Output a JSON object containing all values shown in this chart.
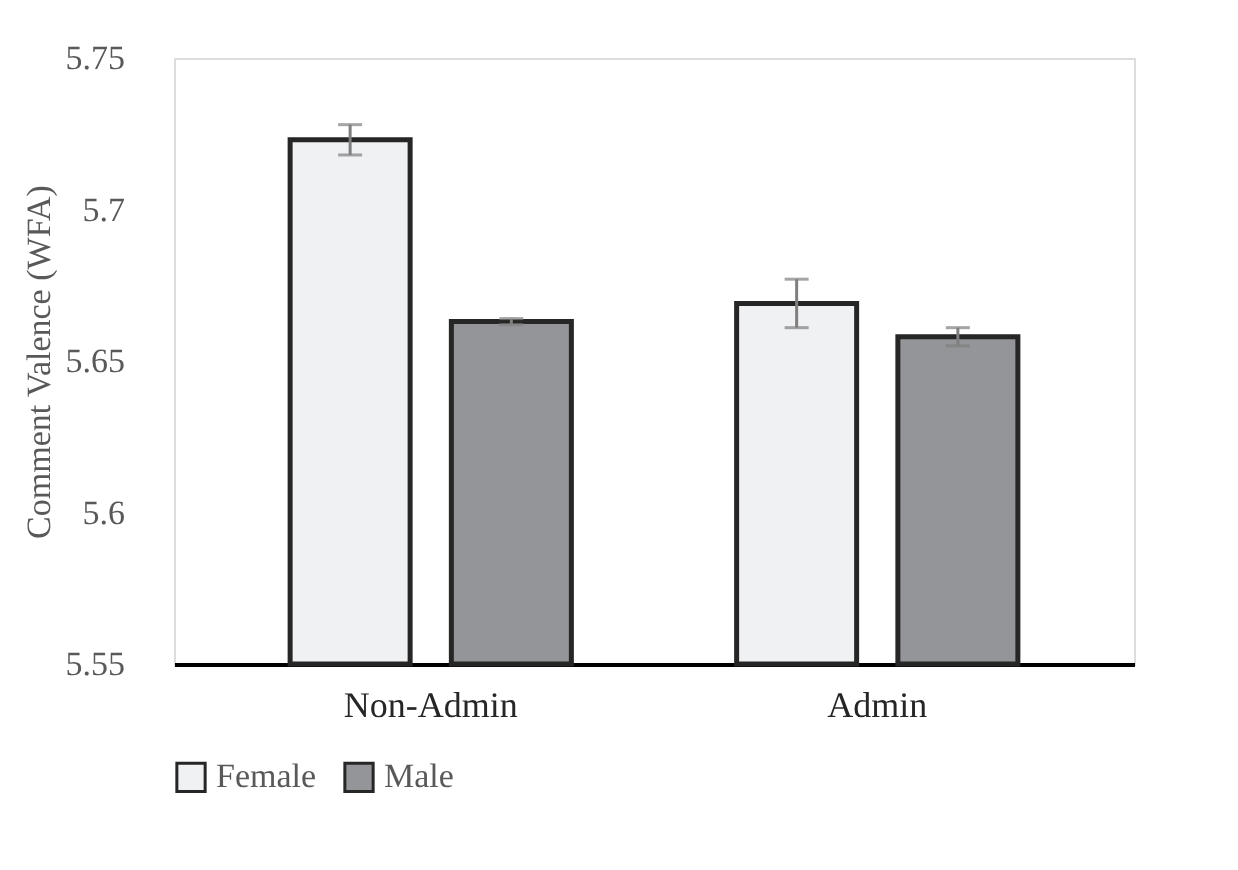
{
  "chart_data": {
    "type": "bar",
    "ylabel": "Comment Valence (WFA)",
    "categories": [
      "Non-Admin",
      "Admin"
    ],
    "series": [
      {
        "name": "Female",
        "color": "#f0f1f3",
        "values": [
          5.723,
          5.669
        ],
        "errors": [
          0.005,
          0.008
        ]
      },
      {
        "name": "Male",
        "color": "#939598",
        "values": [
          5.663,
          5.658
        ],
        "errors": [
          0.001,
          0.003
        ]
      }
    ],
    "ylim": [
      5.55,
      5.75
    ],
    "yticks": [
      5.55,
      5.6,
      5.65,
      5.7,
      5.75
    ],
    "grid": false,
    "legend": "bottom"
  }
}
